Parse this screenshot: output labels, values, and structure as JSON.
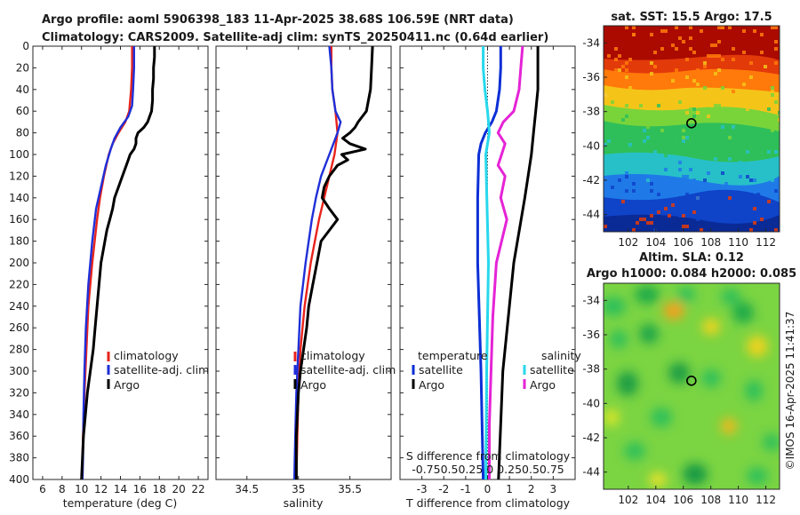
{
  "header": {
    "line1": "Argo profile: aoml 5906398_183 11-Apr-2025 38.68S 106.59E (NRT data)",
    "line2": "Climatology: CARS2009. Satellite-adj clim: synTS_20250411.nc (0.64d earlier)"
  },
  "footer": {
    "credit": "©IMOS 16-Apr-2025 11:41:37"
  },
  "colors": {
    "climatology": "#e8231c",
    "satellite_adj": "#1f2fd8",
    "argo": "#000000",
    "sat_temp": "#0b2fd6",
    "sat_sal": "#27d8ec",
    "argo_sal": "#e523d6"
  },
  "chart_data": [
    {
      "type": "line",
      "id": "temperature",
      "title": "",
      "xlabel": "temperature (deg C)",
      "ylabel": "",
      "xlim": [
        5,
        23
      ],
      "ylim": [
        400,
        0
      ],
      "xticks": [
        6,
        8,
        10,
        12,
        14,
        16,
        18,
        20,
        22
      ],
      "yticks": [
        0,
        20,
        40,
        60,
        80,
        100,
        120,
        140,
        160,
        180,
        200,
        220,
        240,
        260,
        280,
        300,
        320,
        340,
        360,
        380,
        400
      ],
      "legend": {
        "items": [
          "climatology",
          "satellite-adj. clim",
          "Argo"
        ]
      },
      "series": [
        {
          "name": "climatology",
          "color": "#e8231c",
          "depth": [
            0,
            20,
            40,
            60,
            70,
            80,
            90,
            100,
            120,
            140,
            160,
            200,
            240,
            280,
            320,
            360,
            400
          ],
          "values": [
            15.2,
            15.2,
            15.1,
            14.9,
            14.5,
            13.8,
            13.2,
            12.8,
            12.3,
            11.9,
            11.6,
            11.1,
            10.7,
            10.5,
            10.3,
            10.15,
            10.05
          ]
        },
        {
          "name": "satellite-adj. clim",
          "color": "#1f2fd8",
          "depth": [
            0,
            20,
            40,
            55,
            65,
            75,
            85,
            95,
            110,
            130,
            150,
            180,
            220,
            260,
            300,
            340,
            380,
            400
          ],
          "values": [
            15.4,
            15.4,
            15.3,
            15.2,
            14.8,
            14.0,
            13.4,
            13.0,
            12.5,
            12.0,
            11.5,
            11.1,
            10.7,
            10.45,
            10.3,
            10.2,
            10.15,
            10.1
          ]
        },
        {
          "name": "Argo",
          "color": "#000000",
          "depth": [
            0,
            10,
            20,
            30,
            40,
            50,
            60,
            65,
            70,
            75,
            80,
            85,
            90,
            95,
            100,
            105,
            110,
            120,
            130,
            140,
            150,
            160,
            170,
            180,
            200,
            220,
            240,
            260,
            280,
            300,
            320,
            340,
            360,
            380,
            400
          ],
          "values": [
            17.5,
            17.5,
            17.4,
            17.4,
            17.3,
            17.3,
            17.2,
            17.0,
            16.8,
            16.4,
            15.8,
            15.6,
            15.6,
            15.4,
            15.0,
            14.8,
            14.6,
            14.2,
            13.8,
            13.4,
            13.2,
            12.9,
            12.6,
            12.4,
            12.0,
            11.8,
            11.6,
            11.4,
            11.2,
            10.9,
            10.6,
            10.4,
            10.2,
            10.1,
            10.0
          ]
        }
      ]
    },
    {
      "type": "line",
      "id": "salinity",
      "title": "",
      "xlabel": "salinity",
      "ylabel": "",
      "xlim": [
        34.2,
        35.9
      ],
      "ylim": [
        400,
        0
      ],
      "xticks": [
        34.5,
        35,
        35.5
      ],
      "legend": {
        "items": [
          "climatology",
          "satellite-adj. clim",
          "Argo"
        ]
      },
      "series": [
        {
          "name": "climatology",
          "color": "#e8231c",
          "depth": [
            0,
            20,
            40,
            60,
            80,
            100,
            120,
            140,
            160,
            180,
            200,
            240,
            280,
            320,
            360,
            400
          ],
          "values": [
            35.32,
            35.32,
            35.33,
            35.36,
            35.38,
            35.35,
            35.3,
            35.25,
            35.2,
            35.16,
            35.12,
            35.06,
            35.02,
            35.0,
            34.99,
            34.98
          ]
        },
        {
          "name": "satellite-adj. clim",
          "color": "#1f2fd8",
          "depth": [
            0,
            20,
            40,
            60,
            70,
            80,
            100,
            120,
            140,
            160,
            180,
            200,
            240,
            280,
            320,
            360,
            400
          ],
          "values": [
            35.3,
            35.32,
            35.33,
            35.36,
            35.41,
            35.38,
            35.3,
            35.22,
            35.17,
            35.13,
            35.1,
            35.07,
            35.02,
            35.0,
            34.98,
            34.97,
            34.96
          ]
        },
        {
          "name": "Argo",
          "color": "#000000",
          "depth": [
            0,
            20,
            40,
            60,
            70,
            75,
            80,
            85,
            90,
            95,
            100,
            105,
            110,
            120,
            130,
            140,
            150,
            160,
            170,
            180,
            200,
            220,
            240,
            260,
            280,
            300,
            320,
            340,
            360,
            380,
            400
          ],
          "values": [
            35.72,
            35.71,
            35.7,
            35.66,
            35.58,
            35.55,
            35.5,
            35.43,
            35.5,
            35.65,
            35.42,
            35.48,
            35.38,
            35.3,
            35.25,
            35.23,
            35.3,
            35.38,
            35.3,
            35.22,
            35.18,
            35.14,
            35.1,
            35.08,
            35.05,
            35.02,
            35.0,
            34.99,
            34.98,
            34.98,
            34.98
          ]
        }
      ]
    },
    {
      "type": "line",
      "id": "difference",
      "title": "",
      "xlabel": "T difference from climatology",
      "ylabel": "",
      "xlim": [
        -4,
        4
      ],
      "ylim": [
        400,
        0
      ],
      "xticks": [
        -3,
        -2,
        -1,
        0,
        1,
        2,
        3
      ],
      "secondary_axis": {
        "label": "S difference from climatology",
        "ticks": [
          "-0.75",
          "0.5",
          "0.25",
          "0",
          "0.25",
          "0.5",
          "0.75"
        ],
        "tick_text": "-0.750.50.25 0 0.250.50.75"
      },
      "legend": {
        "left_title": "temperature",
        "right_title": "salinity",
        "items": [
          "satellite",
          "Argo",
          "satellite",
          "Argo"
        ]
      },
      "series": [
        {
          "name": "temperature satellite",
          "color": "#0b2fd6",
          "depth": [
            0,
            20,
            40,
            60,
            70,
            80,
            90,
            100,
            140,
            200,
            300,
            400
          ],
          "values": [
            0.6,
            0.6,
            0.55,
            0.4,
            0.2,
            -0.1,
            -0.3,
            -0.4,
            -0.45,
            -0.45,
            -0.3,
            -0.2
          ]
        },
        {
          "name": "temperature Argo",
          "color": "#000000",
          "depth": [
            0,
            40,
            60,
            80,
            100,
            140,
            200,
            300,
            400
          ],
          "values": [
            2.3,
            2.3,
            2.2,
            2.1,
            2.0,
            1.7,
            1.2,
            0.7,
            0.5
          ]
        },
        {
          "name": "salinity satellite",
          "color": "#27d8ec",
          "depth": [
            0,
            20,
            40,
            60,
            80,
            100,
            200,
            300,
            400
          ],
          "values": [
            -0.05,
            -0.05,
            -0.03,
            0,
            0.02,
            -0.02,
            0.01,
            -0.01,
            -0.02
          ]
        },
        {
          "name": "salinity Argo",
          "color": "#e523d6",
          "depth": [
            0,
            20,
            40,
            60,
            70,
            80,
            90,
            100,
            110,
            120,
            140,
            160,
            180,
            200,
            250,
            300,
            350,
            400
          ],
          "values": [
            0.4,
            0.38,
            0.36,
            0.3,
            0.18,
            0.12,
            0.2,
            0.16,
            0.12,
            0.2,
            0.15,
            0.22,
            0.16,
            0.1,
            0.06,
            0.04,
            0.02,
            0.02
          ]
        }
      ]
    },
    {
      "type": "heatmap",
      "id": "sst_map",
      "title": "sat. SST: 15.5 Argo: 17.5",
      "xlabel": "",
      "ylabel": "",
      "xlim": [
        100.2,
        113
      ],
      "ylim": [
        -45,
        -33
      ],
      "xticks": [
        102,
        104,
        106,
        108,
        110,
        112
      ],
      "yticks": [
        -34,
        -36,
        -38,
        -40,
        -42,
        -44
      ],
      "marker": {
        "lon": 106.59,
        "lat": -38.68
      }
    },
    {
      "type": "heatmap",
      "id": "sla_map",
      "title": "Altim. SLA: 0.12",
      "subtitle": "Argo h1000: 0.084 h2000: 0.085",
      "xlabel": "",
      "ylabel": "",
      "xlim": [
        100.2,
        113
      ],
      "ylim": [
        -45,
        -33
      ],
      "xticks": [
        102,
        104,
        106,
        108,
        110,
        112
      ],
      "yticks": [
        -34,
        -36,
        -38,
        -40,
        -42,
        -44
      ],
      "marker": {
        "lon": 106.59,
        "lat": -38.68
      }
    }
  ]
}
